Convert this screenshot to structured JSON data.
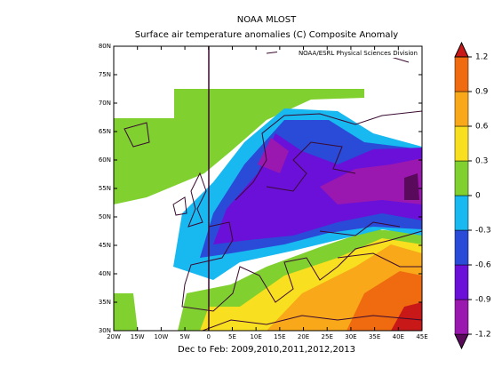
{
  "header": {
    "title": "NOAA MLOST",
    "subtitle": "Surface air temperature anomalies (C) Composite Anomaly"
  },
  "map": {
    "credit": "NOAA/ESRL Physical Sciences Division",
    "caption": "Dec to Feb: 2009,2010,2011,2012,2013",
    "xlim": [
      -20,
      45
    ],
    "ylim": [
      30,
      80
    ],
    "xticks": [
      {
        "value": -20,
        "label": "20W"
      },
      {
        "value": -15,
        "label": "15W"
      },
      {
        "value": -10,
        "label": "10W"
      },
      {
        "value": -5,
        "label": "5W"
      },
      0,
      {
        "value": 5,
        "label": "5E"
      },
      {
        "value": 10,
        "label": "10E"
      },
      {
        "value": 15,
        "label": "15E"
      },
      {
        "value": 20,
        "label": "20E"
      },
      {
        "value": 25,
        "label": "25E"
      },
      {
        "value": 30,
        "label": "30E"
      },
      {
        "value": 35,
        "label": "35E"
      },
      {
        "value": 40,
        "label": "40E"
      },
      {
        "value": 45,
        "label": "45E"
      }
    ],
    "yticks": [
      {
        "value": 30,
        "label": "30N"
      },
      {
        "value": 35,
        "label": "35N"
      },
      {
        "value": 40,
        "label": "40N"
      },
      {
        "value": 45,
        "label": "45N"
      },
      {
        "value": 50,
        "label": "50N"
      },
      {
        "value": 55,
        "label": "55N"
      },
      {
        "value": 60,
        "label": "60N"
      },
      {
        "value": 65,
        "label": "65N"
      },
      {
        "value": 70,
        "label": "70N"
      },
      {
        "value": 75,
        "label": "75N"
      },
      {
        "value": 80,
        "label": "80N"
      }
    ]
  },
  "colorbar": {
    "lim": [
      -1.2,
      1.2
    ],
    "ticks": [
      -1.2,
      -0.9,
      -0.6,
      -0.3,
      0,
      0.3,
      0.6,
      0.9,
      1.2
    ],
    "colors": [
      "#5a0a5a",
      "#9a18b0",
      "#6a10d8",
      "#2a4ad8",
      "#18b8f0",
      "#80d030",
      "#f8e020",
      "#f8a818",
      "#f06a10",
      "#c81818"
    ]
  }
}
